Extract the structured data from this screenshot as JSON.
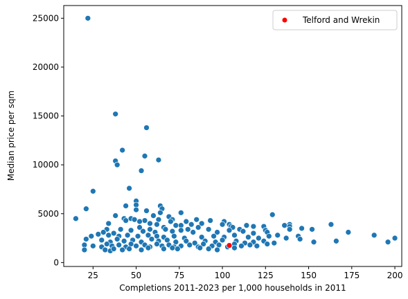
{
  "chart_data": {
    "type": "scatter",
    "xlabel": "Completions 2011-2023 per 1,000 households in 2011",
    "ylabel": "Median price per sqm",
    "xlim": [
      8,
      204
    ],
    "ylim": [
      -400,
      26300
    ],
    "xticks": [
      25,
      50,
      75,
      100,
      125,
      150,
      175,
      200
    ],
    "yticks": [
      0,
      5000,
      10000,
      15000,
      20000,
      25000
    ],
    "grid": false,
    "legend_position": "top-right",
    "series": [
      {
        "name": "",
        "color": "#1f77b4",
        "points": [
          [
            22,
            25000
          ],
          [
            38,
            15200
          ],
          [
            56,
            13800
          ],
          [
            42,
            11500
          ],
          [
            55,
            10900
          ],
          [
            38,
            10400
          ],
          [
            63,
            10500
          ],
          [
            39,
            10000
          ],
          [
            53,
            9400
          ],
          [
            46,
            7600
          ],
          [
            25,
            7300
          ],
          [
            50,
            6300
          ],
          [
            50,
            5900
          ],
          [
            44,
            5800
          ],
          [
            64,
            5800
          ],
          [
            21,
            5500
          ],
          [
            65,
            5500
          ],
          [
            50,
            5400
          ],
          [
            56,
            5300
          ],
          [
            64,
            5100
          ],
          [
            76,
            5100
          ],
          [
            129,
            4900
          ],
          [
            38,
            4800
          ],
          [
            60,
            4800
          ],
          [
            69,
            4700
          ],
          [
            15,
            4500
          ],
          [
            43,
            4500
          ],
          [
            47,
            4500
          ],
          [
            49,
            4400
          ],
          [
            63,
            4400
          ],
          [
            71,
            4400
          ],
          [
            85,
            4400
          ],
          [
            44,
            4300
          ],
          [
            55,
            4300
          ],
          [
            70,
            4200
          ],
          [
            93,
            4300
          ],
          [
            52,
            4200
          ],
          [
            79,
            4200
          ],
          [
            101,
            4200
          ],
          [
            34,
            4000
          ],
          [
            58,
            4000
          ],
          [
            82,
            3900
          ],
          [
            88,
            4000
          ],
          [
            100,
            3900
          ],
          [
            104,
            3900
          ],
          [
            62,
            3900
          ],
          [
            73,
            3800
          ],
          [
            76,
            3800
          ],
          [
            114,
            3800
          ],
          [
            105,
            3700
          ],
          [
            118,
            3700
          ],
          [
            139,
            3900
          ],
          [
            136,
            3800
          ],
          [
            163,
            3900
          ],
          [
            52,
            3600
          ],
          [
            66,
            3600
          ],
          [
            86,
            3600
          ],
          [
            106,
            3600
          ],
          [
            124,
            3700
          ],
          [
            152,
            3400
          ],
          [
            146,
            3500
          ],
          [
            139,
            3700
          ],
          [
            173,
            3100
          ],
          [
            33,
            3400
          ],
          [
            41,
            3400
          ],
          [
            58,
            3400
          ],
          [
            67,
            3400
          ],
          [
            80,
            3400
          ],
          [
            92,
            3400
          ],
          [
            110,
            3400
          ],
          [
            125,
            3300
          ],
          [
            139,
            3400
          ],
          [
            28,
            2900
          ],
          [
            31,
            3100
          ],
          [
            37,
            3000
          ],
          [
            47,
            3300
          ],
          [
            54,
            3200
          ],
          [
            61,
            3100
          ],
          [
            71,
            3200
          ],
          [
            76,
            3300
          ],
          [
            83,
            3100
          ],
          [
            97,
            3100
          ],
          [
            104,
            3300
          ],
          [
            112,
            3200
          ],
          [
            118,
            3000
          ],
          [
            126,
            3100
          ],
          [
            132,
            2800
          ],
          [
            188,
            2800
          ],
          [
            200,
            2500
          ],
          [
            196,
            2100
          ],
          [
            21,
            2400
          ],
          [
            24,
            2700
          ],
          [
            34,
            2800
          ],
          [
            40,
            2700
          ],
          [
            45,
            2800
          ],
          [
            51,
            2700
          ],
          [
            57,
            2800
          ],
          [
            62,
            2700
          ],
          [
            66,
            2600
          ],
          [
            72,
            2700
          ],
          [
            78,
            2500
          ],
          [
            88,
            2600
          ],
          [
            95,
            2700
          ],
          [
            101,
            2600
          ],
          [
            107,
            2800
          ],
          [
            115,
            2600
          ],
          [
            121,
            2500
          ],
          [
            127,
            2700
          ],
          [
            137,
            2500
          ],
          [
            144,
            2700
          ],
          [
            166,
            2200
          ],
          [
            153,
            2100
          ],
          [
            145,
            2400
          ],
          [
            30,
            2300
          ],
          [
            35,
            2100
          ],
          [
            39,
            2400
          ],
          [
            43,
            2200
          ],
          [
            48,
            2300
          ],
          [
            53,
            2100
          ],
          [
            59,
            2400
          ],
          [
            63,
            2200
          ],
          [
            68,
            2300
          ],
          [
            73,
            2100
          ],
          [
            79,
            2200
          ],
          [
            84,
            2000
          ],
          [
            90,
            2200
          ],
          [
            96,
            2100
          ],
          [
            100,
            2300
          ],
          [
            108,
            2200
          ],
          [
            113,
            2000
          ],
          [
            118,
            2100
          ],
          [
            124,
            2200
          ],
          [
            130,
            2000
          ],
          [
            20,
            1800
          ],
          [
            25,
            1700
          ],
          [
            30,
            1600
          ],
          [
            33,
            1900
          ],
          [
            36,
            1700
          ],
          [
            40,
            1800
          ],
          [
            44,
            1600
          ],
          [
            47,
            1900
          ],
          [
            50,
            1700
          ],
          [
            55,
            1800
          ],
          [
            58,
            1600
          ],
          [
            62,
            1900
          ],
          [
            65,
            1700
          ],
          [
            69,
            1800
          ],
          [
            72,
            1600
          ],
          [
            76,
            1700
          ],
          [
            81,
            1800
          ],
          [
            86,
            1600
          ],
          [
            89,
            1900
          ],
          [
            94,
            1700
          ],
          [
            98,
            1800
          ],
          [
            103,
            1600
          ],
          [
            107,
            1900
          ],
          [
            111,
            1700
          ],
          [
            116,
            1800
          ],
          [
            120,
            1700
          ],
          [
            126,
            1900
          ],
          [
            20,
            1300
          ],
          [
            32,
            1300
          ],
          [
            35,
            1200
          ],
          [
            37,
            1400
          ],
          [
            42,
            1300
          ],
          [
            46,
            1400
          ],
          [
            53,
            1300
          ],
          [
            57,
            1500
          ],
          [
            66,
            1400
          ],
          [
            71,
            1500
          ],
          [
            74,
            1400
          ],
          [
            87,
            1500
          ],
          [
            92,
            1400
          ],
          [
            97,
            1300
          ],
          [
            107,
            1500
          ]
        ]
      },
      {
        "name": "Telford and Wrekin",
        "color": "#ff0000",
        "points": [
          [
            104,
            1750
          ]
        ]
      }
    ]
  }
}
